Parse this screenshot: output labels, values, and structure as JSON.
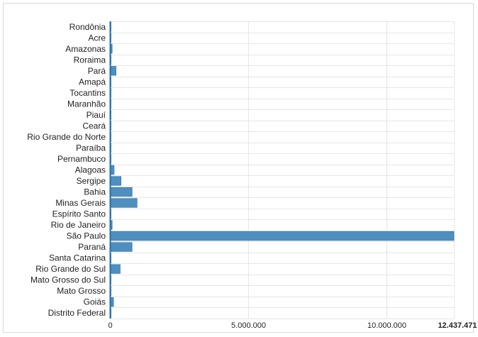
{
  "chart_data": {
    "type": "bar",
    "orientation": "horizontal",
    "title": "",
    "xlabel": "",
    "ylabel": "",
    "categories": [
      "Rondônia",
      "Acre",
      "Amazonas",
      "Roraima",
      "Pará",
      "Amapá",
      "Tocantins",
      "Maranhão",
      "Piauí",
      "Ceará",
      "Rio Grande do Norte",
      "Paraíba",
      "Pernambuco",
      "Alagoas",
      "Sergipe",
      "Bahia",
      "Minas Gerais",
      "Espírito Santo",
      "Rio de Janeiro",
      "São Paulo",
      "Paraná",
      "Santa Catarina",
      "Rio Grande do Sul",
      "Mato Grosso do Sul",
      "Mato Grosso",
      "Goiás",
      "Distrito Federal"
    ],
    "values": [
      30000,
      15000,
      80000,
      20000,
      220000,
      15000,
      20000,
      25000,
      30000,
      30000,
      30000,
      30000,
      30000,
      150000,
      400000,
      800000,
      980000,
      30000,
      80000,
      12437471,
      800000,
      20000,
      370000,
      20000,
      20000,
      130000,
      40000
    ],
    "xlim": [
      0,
      12437471
    ],
    "x_ticks": [
      {
        "value": 0,
        "label": "0"
      },
      {
        "value": 5000000,
        "label": "5.000.000"
      },
      {
        "value": 10000000,
        "label": "10.000.000"
      },
      {
        "value": 12437471,
        "label": "12.437.471"
      }
    ],
    "grid": true,
    "bar_color": "#4f8fc0",
    "bar_stroke": "#3f79a6",
    "grid_color": "#e6e6e6",
    "axis_color": "#1f6fb2"
  }
}
